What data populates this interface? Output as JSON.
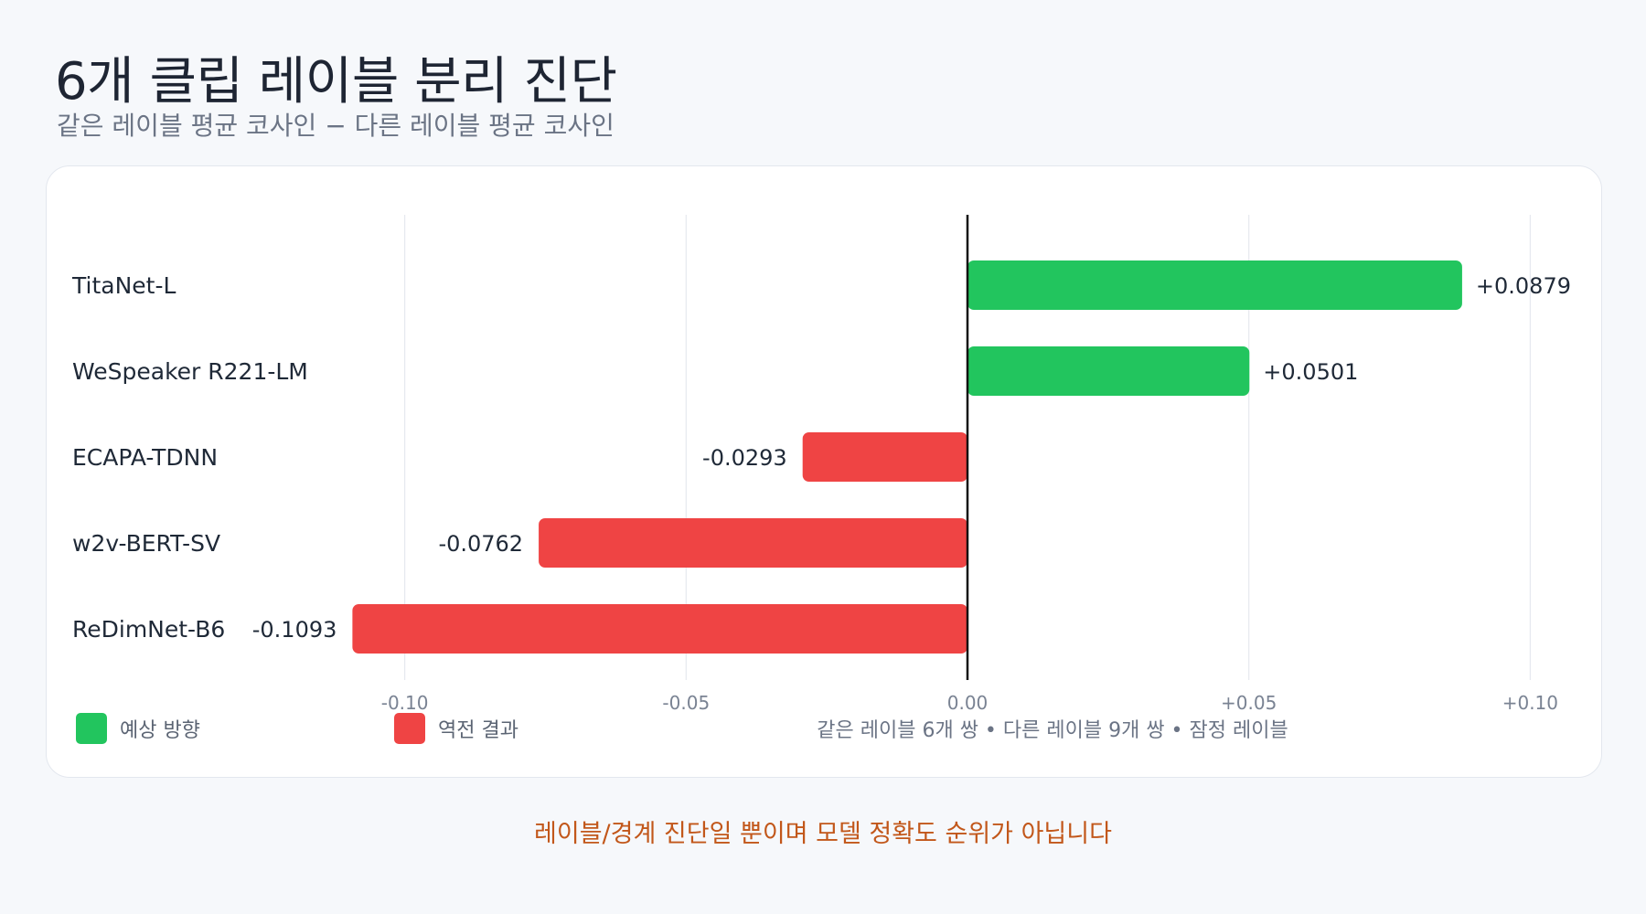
{
  "header": {
    "title": "6개 클립 레이블 분리 진단",
    "subtitle": "같은 레이블 평균 코사인 − 다른 레이블 평균 코사인"
  },
  "chart_data": {
    "type": "bar",
    "orientation": "horizontal",
    "categories": [
      "TitaNet-L",
      "WeSpeaker R221-LM",
      "ECAPA-TDNN",
      "w2v-BERT-SV",
      "ReDimNet-B6"
    ],
    "values": [
      0.0879,
      0.0501,
      -0.0293,
      -0.0762,
      -0.1093
    ],
    "value_labels": [
      "+0.0879",
      "+0.0501",
      "-0.0293",
      "-0.0762",
      "-0.1093"
    ],
    "xlim": [
      -0.12,
      0.1
    ],
    "xticks": [
      -0.1,
      -0.05,
      0.0,
      0.05,
      0.1
    ],
    "xtick_labels": [
      "-0.10",
      "-0.05",
      "0.00",
      "+0.05",
      "+0.10"
    ],
    "grid": "vertical",
    "colors": {
      "positive": "#22c55e",
      "negative": "#ef4444",
      "zero_line": "#111111",
      "grid": "#e6e9ef"
    },
    "legend": [
      {
        "label": "예상 방향",
        "color": "#22c55e"
      },
      {
        "label": "역전 결과",
        "color": "#ef4444"
      }
    ],
    "legend_placement": "bottom-left",
    "note": "같은 레이블 6개 쌍 • 다른 레이블 9개 쌍 • 잠정 레이블"
  },
  "footer": {
    "note": "레이블/경계 진단일 뿐이며 모델 정확도 순위가 아닙니다"
  }
}
